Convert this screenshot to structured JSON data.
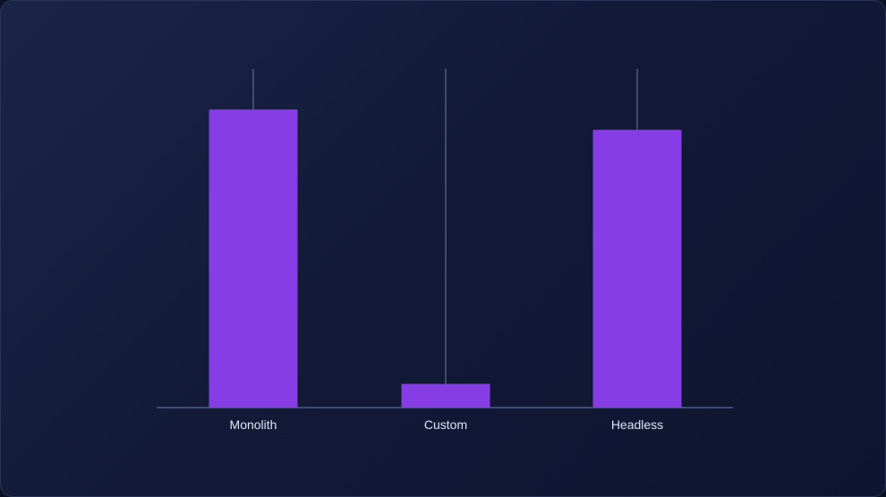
{
  "chart_data": {
    "type": "bar",
    "categories": [
      "Monolith",
      "Custom",
      "Headless"
    ],
    "values": [
      88,
      7,
      82
    ],
    "ylim": [
      0,
      100
    ],
    "grid": false,
    "legend": "none",
    "title": "",
    "xlabel": "",
    "ylabel": ""
  },
  "colors": {
    "bar": "#873de6",
    "axis": "#5b6a94",
    "label": "#dfe4f2"
  }
}
